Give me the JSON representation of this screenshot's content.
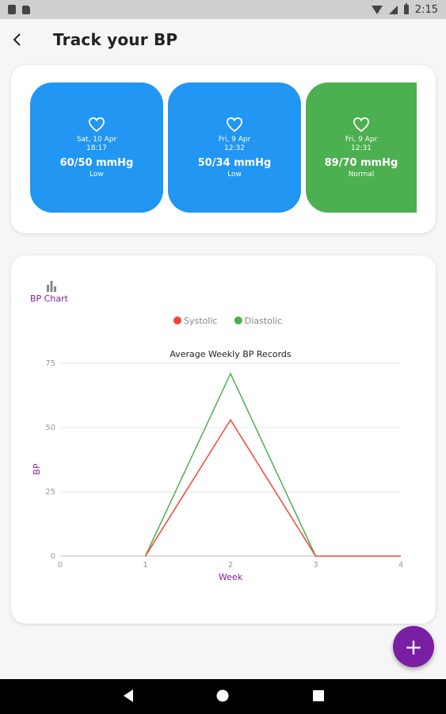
{
  "status_bar": {
    "time": "2:15",
    "icons": [
      "photo-notification-icon",
      "sd-card-icon",
      "wifi-icon",
      "cell-signal-icon",
      "battery-icon"
    ]
  },
  "app_bar": {
    "title": "Track your BP",
    "back_icon": "back-arrow-icon"
  },
  "readings": [
    {
      "date": "Sat, 10 Apr",
      "time": "18:17",
      "value": "60/50 mmHg",
      "status": "Low",
      "color": "#2196f3"
    },
    {
      "date": "Fri, 9 Apr",
      "time": "12:32",
      "value": "50/34 mmHg",
      "status": "Low",
      "color": "#2196f3"
    },
    {
      "date": "Fri, 9 Apr",
      "time": "12:31",
      "value": "89/70 mmHg",
      "status": "Normal",
      "color": "#4caf50"
    }
  ],
  "chart_section": {
    "label": "BP Chart",
    "icon": "bar-chart-icon"
  },
  "chart_data": {
    "type": "line",
    "title": "Average Weekly BP Records",
    "xlabel": "Week",
    "ylabel": "BP",
    "x": [
      0,
      1,
      2,
      3,
      4
    ],
    "xlim": [
      0,
      4
    ],
    "ylim": [
      0,
      75
    ],
    "xticks": [
      "0",
      "1",
      "2",
      "3",
      "4"
    ],
    "yticks": [
      "0",
      "25",
      "50",
      "75"
    ],
    "grid": true,
    "legend": "top-center",
    "series": [
      {
        "name": "Systolic",
        "color": "#f44336",
        "values": [
          null,
          0,
          53,
          0,
          0
        ]
      },
      {
        "name": "Diastolic",
        "color": "#4caf50",
        "values": [
          null,
          0,
          71,
          0,
          null
        ]
      }
    ]
  },
  "fab": {
    "label": "+",
    "icon": "add-icon"
  },
  "nav_bar": {
    "icons": [
      "back-nav-icon",
      "home-nav-icon",
      "recents-nav-icon"
    ]
  },
  "colors": {
    "accent": "#7b1fa2",
    "low": "#2196f3",
    "normal": "#4caf50",
    "systolic": "#f44336",
    "diastolic": "#4caf50"
  }
}
